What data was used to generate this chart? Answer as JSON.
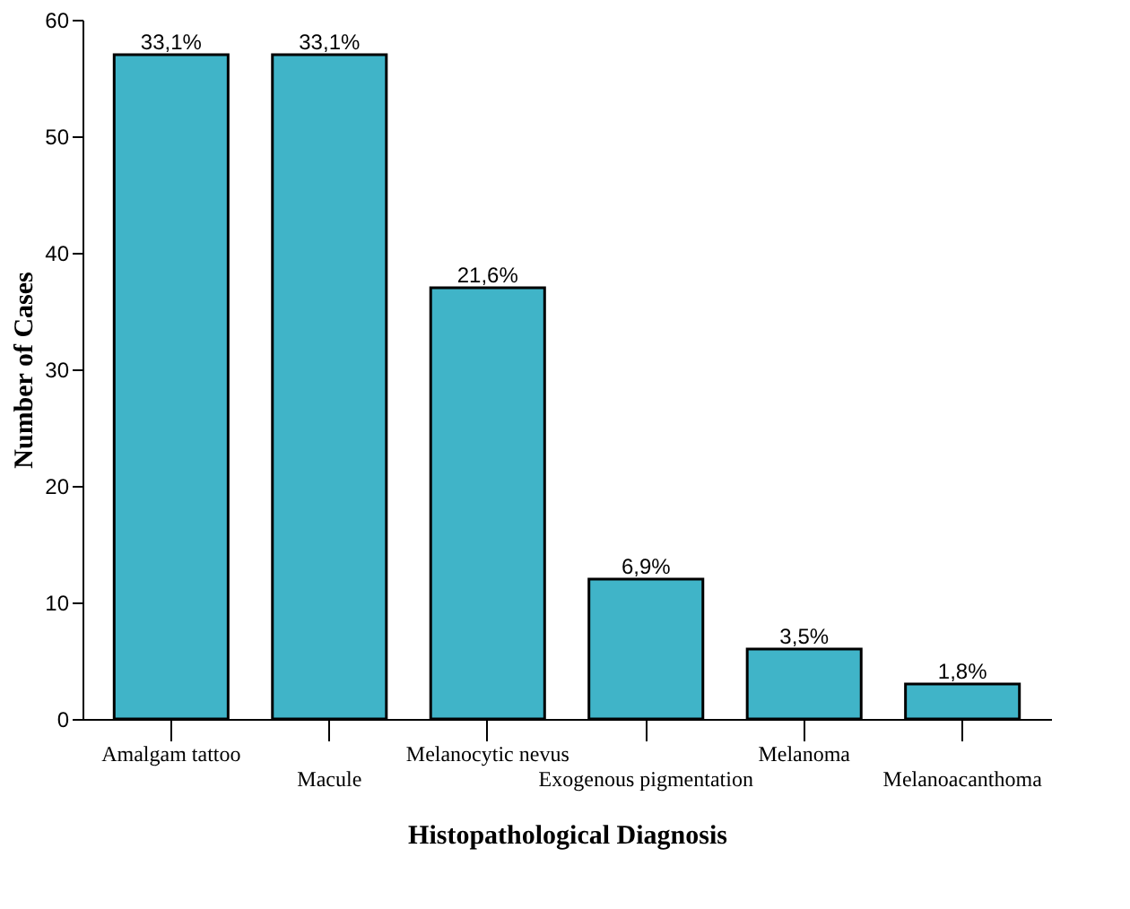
{
  "chart_data": {
    "type": "bar",
    "xlabel": "Histopathological Diagnosis",
    "ylabel": "Number of Cases",
    "categories": [
      "Amalgam tattoo",
      "Macule",
      "Melanocytic nevus",
      "Exogenous pigmentation",
      "Melanoma",
      "Melanoacanthoma"
    ],
    "values": [
      57,
      57,
      37,
      12,
      6,
      3
    ],
    "annotations": [
      {
        "text": "33,1%",
        "x": "Amalgam tattoo",
        "y": 57
      },
      {
        "text": "33,1%",
        "x": "Macule",
        "y": 57
      },
      {
        "text": "21,6%",
        "x": "Melanocytic nevus",
        "y": 37
      },
      {
        "text": "6,9%",
        "x": "Exogenous pigmentation",
        "y": 12
      },
      {
        "text": "3,5%",
        "x": "Melanoma",
        "y": 6
      },
      {
        "text": "1,8%",
        "x": "Melanoacanthoma",
        "y": 3
      }
    ],
    "color": "#40b4c8",
    "ylim": [
      0,
      60
    ],
    "yticks": [
      0,
      10,
      20,
      30,
      40,
      50,
      60
    ],
    "grid": false
  }
}
